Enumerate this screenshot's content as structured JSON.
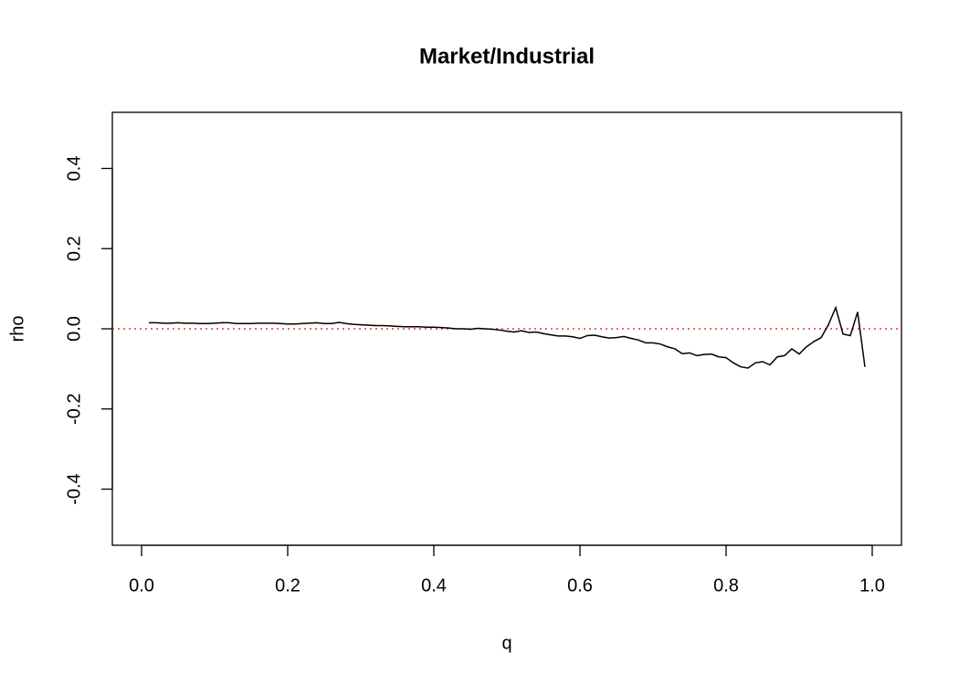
{
  "chart_data": {
    "type": "line",
    "title": "Market/Industrial",
    "x_label": "q",
    "y_label": "rho",
    "x": [
      0.01,
      0.02,
      0.03,
      0.04,
      0.05,
      0.06,
      0.07,
      0.08,
      0.09,
      0.1,
      0.11,
      0.12,
      0.13,
      0.14,
      0.15,
      0.16,
      0.17,
      0.18,
      0.19,
      0.2,
      0.21,
      0.22,
      0.23,
      0.24,
      0.25,
      0.26,
      0.27,
      0.28,
      0.29,
      0.3,
      0.31,
      0.32,
      0.33,
      0.34,
      0.35,
      0.36,
      0.37,
      0.38,
      0.39,
      0.4,
      0.41,
      0.42,
      0.43,
      0.44,
      0.45,
      0.46,
      0.47,
      0.48,
      0.49,
      0.5,
      0.51,
      0.52,
      0.53,
      0.54,
      0.55,
      0.56,
      0.57,
      0.58,
      0.59,
      0.6,
      0.61,
      0.62,
      0.63,
      0.64,
      0.65,
      0.66,
      0.67,
      0.68,
      0.69,
      0.7,
      0.71,
      0.72,
      0.73,
      0.74,
      0.75,
      0.76,
      0.77,
      0.78,
      0.79,
      0.8,
      0.81,
      0.82,
      0.83,
      0.84,
      0.85,
      0.86,
      0.87,
      0.88,
      0.89,
      0.9,
      0.91,
      0.92,
      0.93,
      0.94,
      0.95,
      0.96,
      0.97,
      0.98,
      0.99
    ],
    "series": [
      {
        "color": "#000000",
        "values": [
          0.015,
          0.015,
          0.014,
          0.014,
          0.015,
          0.014,
          0.014,
          0.013,
          0.013,
          0.014,
          0.015,
          0.015,
          0.013,
          0.013,
          0.013,
          0.014,
          0.014,
          0.014,
          0.013,
          0.012,
          0.012,
          0.013,
          0.014,
          0.015,
          0.013,
          0.013,
          0.016,
          0.013,
          0.011,
          0.01,
          0.009,
          0.008,
          0.008,
          0.007,
          0.006,
          0.005,
          0.005,
          0.005,
          0.004,
          0.004,
          0.003,
          0.002,
          0.0,
          0.0,
          -0.001,
          0.001,
          0.0,
          -0.001,
          -0.003,
          -0.006,
          -0.008,
          -0.005,
          -0.009,
          -0.008,
          -0.012,
          -0.015,
          -0.018,
          -0.018,
          -0.02,
          -0.024,
          -0.017,
          -0.016,
          -0.02,
          -0.023,
          -0.022,
          -0.019,
          -0.024,
          -0.028,
          -0.035,
          -0.035,
          -0.038,
          -0.045,
          -0.05,
          -0.062,
          -0.06,
          -0.067,
          -0.064,
          -0.063,
          -0.07,
          -0.072,
          -0.085,
          -0.095,
          -0.098,
          -0.085,
          -0.082,
          -0.09,
          -0.07,
          -0.067,
          -0.05,
          -0.063,
          -0.045,
          -0.032,
          -0.022,
          0.01,
          0.053,
          -0.013,
          -0.017,
          0.042,
          -0.095
        ]
      }
    ],
    "hline": {
      "value": 0,
      "color": "#ff0000"
    },
    "xlim": [
      -0.04,
      1.04
    ],
    "ylim": [
      -0.54,
      0.54
    ],
    "xticks": [
      {
        "value": 0,
        "label": "0.0"
      },
      0.2,
      0.4,
      0.6,
      0.8,
      {
        "value": 1,
        "label": "1.0"
      }
    ],
    "yticks": [
      -0.4,
      -0.2,
      {
        "value": 0,
        "label": "0.0"
      },
      0.2,
      0.4
    ]
  }
}
